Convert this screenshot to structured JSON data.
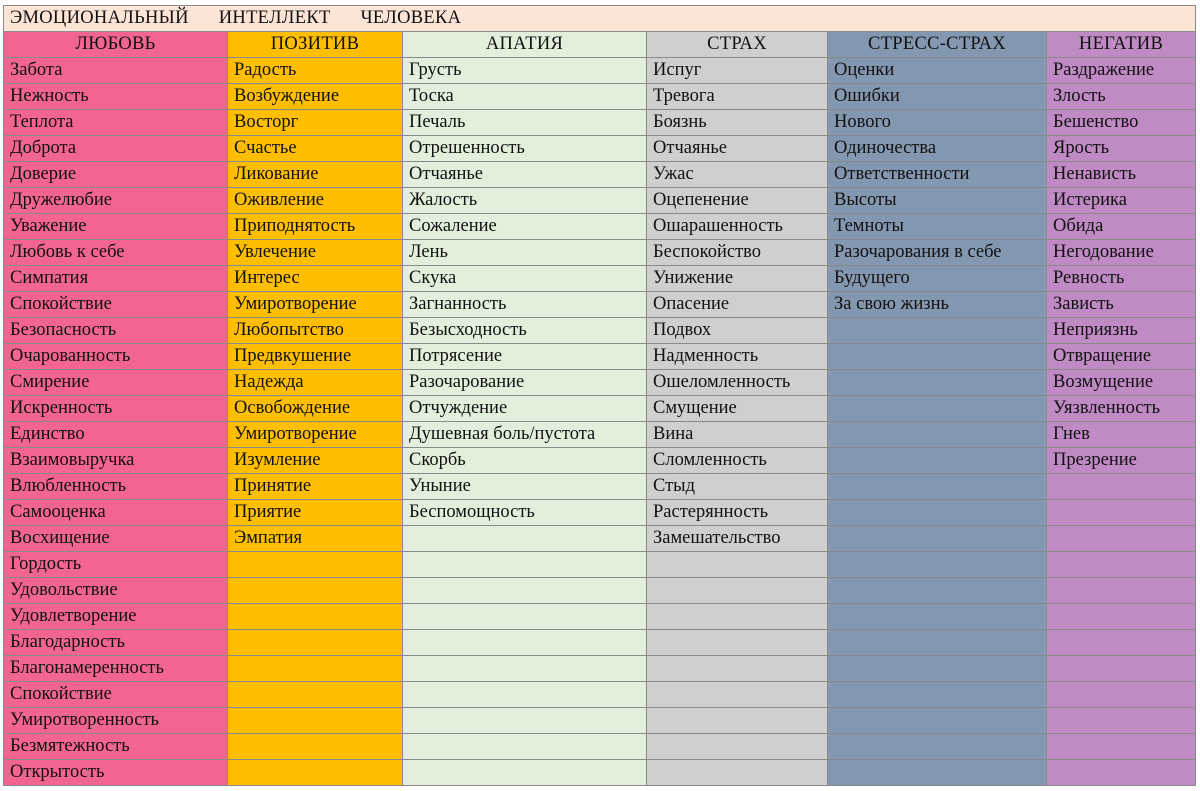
{
  "title": {
    "parts": [
      "ЭМОЦИОНАЛЬНЫЙ",
      "ИНТЕЛЛЕКТ",
      "ЧЕЛОВЕКА"
    ],
    "background": "#fce4d6"
  },
  "columns": [
    {
      "key": "love",
      "header": "ЛЮБОВЬ",
      "color": "#f26591",
      "items": [
        "Забота",
        "Нежность",
        "Теплота",
        "Доброта",
        "Доверие",
        "Дружелюбие",
        "Уважение",
        "Любовь к себе",
        "Симпатия",
        "Спокойствие",
        "Безопасность",
        "Очарованность",
        "Смирение",
        "Искренность",
        "Единство",
        "Взаимовыручка",
        "Влюбленность",
        "Самооценка",
        "Восхищение",
        "Гордость",
        "Удовольствие",
        "Удовлетворение",
        "Благодарность",
        "Благонамеренность",
        "Спокойствие",
        "Умиротворенность",
        "Безмятежность",
        "Открытость"
      ]
    },
    {
      "key": "positive",
      "header": "ПОЗИТИВ",
      "color": "#ffbf00",
      "items": [
        "Радость",
        "Возбуждение",
        "Восторг",
        "Счастье",
        "Ликование",
        "Оживление",
        "Приподнятость",
        "Увлечение",
        "Интерес",
        "Умиротворение",
        "Любопытство",
        "Предвкушение",
        "Надежда",
        "Освобождение",
        "Умиротворение",
        "Изумление",
        "Принятие",
        "Приятие",
        "Эмпатия"
      ]
    },
    {
      "key": "apathy",
      "header": "АПАТИЯ",
      "color": "#e2efda",
      "items": [
        "Грусть",
        "Тоска",
        "Печаль",
        "Отрешенность",
        "Отчаянье",
        "Жалость",
        "Сожаление",
        "Лень",
        "Скука",
        "Загнанность",
        "Безысходность",
        "Потрясение",
        "Разочарование",
        "Отчуждение",
        "Душевная боль/пустота",
        "Скорбь",
        "Уныние",
        "Беспомощность"
      ]
    },
    {
      "key": "fear",
      "header": "СТРАХ",
      "color": "#d0cece",
      "items": [
        "Испуг",
        "Тревога",
        "Боязнь",
        "Отчаянье",
        "Ужас",
        "Оцепенение",
        "Ошарашенность",
        "Беспокойство",
        "Унижение",
        "Опасение",
        "Подвох",
        "Надменность",
        "Ошеломленность",
        "Смущение",
        "Вина",
        "Сломленность",
        "Стыд",
        "Растерянность",
        "Замешательство"
      ]
    },
    {
      "key": "stress_fear",
      "header": "СТРЕСС-СТРАХ",
      "color": "#8497b0",
      "items": [
        "Оценки",
        "Ошибки",
        "Нового",
        "Одиночества",
        "Ответственности",
        "Высоты",
        "Темноты",
        "Разочарования в себе",
        "Будущего",
        "За свою жизнь"
      ]
    },
    {
      "key": "negative",
      "header": "НЕГАТИВ",
      "color": "#c08ac4",
      "items": [
        "Раздражение",
        "Злость",
        "Бешенство",
        "Ярость",
        "Ненависть",
        "Истерика",
        "Обида",
        "Негодование",
        "Ревность",
        "Зависть",
        "Неприязнь",
        "Отвращение",
        "Возмущение",
        "Уязвленность",
        "Гнев",
        "Презрение"
      ]
    }
  ]
}
